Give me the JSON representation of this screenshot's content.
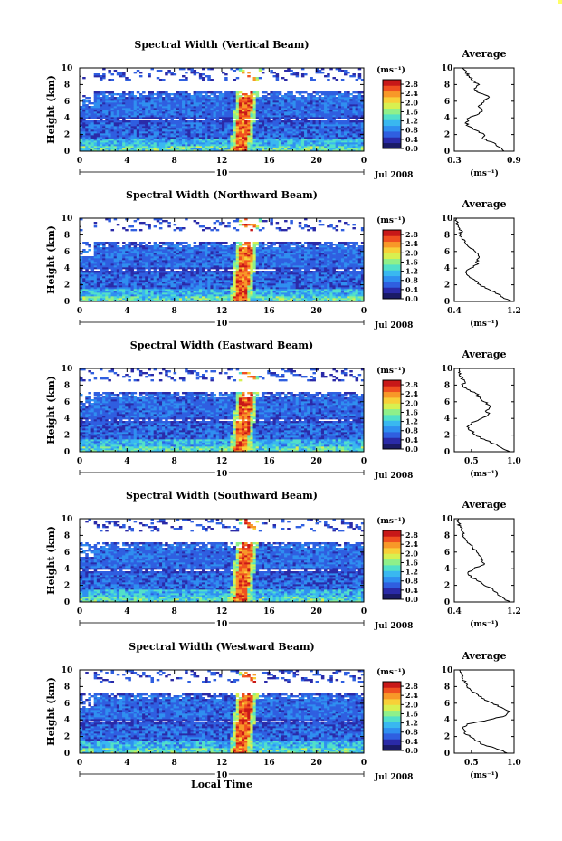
{
  "colors": {
    "colormap": [
      "#1a1a66",
      "#2a2aa8",
      "#2f5fe0",
      "#2f8ff0",
      "#39b8f0",
      "#52e0c8",
      "#8ff08a",
      "#d8f050",
      "#f8d038",
      "#f89828",
      "#f05020",
      "#c81818"
    ],
    "background": "#ffffff",
    "corner_marker": "#ffff66"
  },
  "chart_data": [
    {
      "type": "heatmap",
      "title": "Spectral Width (Vertical Beam)",
      "ylabel": "Height (km)",
      "ylim": [
        0,
        10
      ],
      "yticks": [
        "0",
        "2",
        "4",
        "6",
        "8",
        "10"
      ],
      "xlim": [
        0,
        24
      ],
      "xticks": [
        "0",
        "4",
        "8",
        "12",
        "16",
        "20",
        "0"
      ],
      "date_marker": "10",
      "date_label": "Jul 2008",
      "colorbar": {
        "unit": "(ms⁻¹)",
        "ticks": [
          "0.0",
          "0.4",
          "0.8",
          "1.2",
          "1.6",
          "2.0",
          "2.4",
          "2.8"
        ],
        "range": [
          0,
          3.0
        ]
      },
      "profile": {
        "title": "Average",
        "xticks": [
          "0.3",
          "0.9"
        ],
        "xlim": [
          0.3,
          0.9
        ],
        "ylim": [
          0,
          10
        ],
        "yticks": [
          "0",
          "2",
          "4",
          "6",
          "8",
          "10"
        ],
        "xlabel": "(ms⁻¹)",
        "x": [
          0.8,
          0.75,
          0.7,
          0.58,
          0.6,
          0.52,
          0.44,
          0.42,
          0.45,
          0.55,
          0.58,
          0.55,
          0.6,
          0.65,
          0.55,
          0.5,
          0.55,
          0.48,
          0.45,
          0.42,
          0.38
        ],
        "y": [
          0,
          0.5,
          1,
          1.5,
          2,
          2.5,
          3,
          3.5,
          4,
          4.5,
          5,
          5.5,
          6,
          6.5,
          7,
          7.5,
          8,
          8.5,
          9,
          9.5,
          10
        ]
      }
    },
    {
      "type": "heatmap",
      "title": "Spectral Width (Northward Beam)",
      "ylabel": "Height (km)",
      "ylim": [
        0,
        10
      ],
      "yticks": [
        "0",
        "2",
        "4",
        "6",
        "8",
        "10"
      ],
      "xlim": [
        0,
        24
      ],
      "xticks": [
        "0",
        "4",
        "8",
        "12",
        "16",
        "20",
        "0"
      ],
      "date_marker": "10",
      "date_label": "Jul 2008",
      "colorbar": {
        "unit": "(ms⁻¹)",
        "ticks": [
          "0.0",
          "0.4",
          "0.8",
          "1.2",
          "1.6",
          "2.0",
          "2.4",
          "2.8"
        ],
        "range": [
          0,
          3.0
        ]
      },
      "profile": {
        "title": "Average",
        "xticks": [
          "0.4",
          "1.2"
        ],
        "xlim": [
          0.4,
          1.2
        ],
        "ylim": [
          0,
          10
        ],
        "yticks": [
          "0",
          "2",
          "4",
          "6",
          "8",
          "10"
        ],
        "xlabel": "(ms⁻¹)",
        "x": [
          1.18,
          1.05,
          0.95,
          0.85,
          0.75,
          0.68,
          0.6,
          0.55,
          0.62,
          0.72,
          0.7,
          0.72,
          0.68,
          0.6,
          0.55,
          0.5,
          0.48,
          0.5,
          0.45,
          0.45,
          0.42
        ],
        "y": [
          0,
          0.5,
          1,
          1.5,
          2,
          2.5,
          3,
          3.5,
          4,
          4.5,
          5,
          5.5,
          6,
          6.5,
          7,
          7.5,
          8,
          8.5,
          9,
          9.5,
          10
        ]
      }
    },
    {
      "type": "heatmap",
      "title": "Spectral Width (Eastward Beam)",
      "ylabel": "Height (km)",
      "ylim": [
        0,
        10
      ],
      "yticks": [
        "0",
        "2",
        "4",
        "6",
        "8",
        "10"
      ],
      "xlim": [
        0,
        24
      ],
      "xticks": [
        "0",
        "4",
        "8",
        "12",
        "16",
        "20",
        "0"
      ],
      "date_marker": "10",
      "date_label": "Jul 2008",
      "colorbar": {
        "unit": "(ms⁻¹)",
        "ticks": [
          "0.0",
          "0.4",
          "0.8",
          "1.2",
          "1.6",
          "2.0",
          "2.4",
          "2.8"
        ],
        "range": [
          0,
          3.0
        ]
      },
      "profile": {
        "title": "Average",
        "xticks": [
          "0.5",
          "1.0"
        ],
        "xlim": [
          0.3,
          1.0
        ],
        "ylim": [
          0,
          10
        ],
        "yticks": [
          "0",
          "2",
          "4",
          "6",
          "8",
          "10"
        ],
        "xlabel": "(ms⁻¹)",
        "x": [
          0.95,
          0.85,
          0.75,
          0.65,
          0.55,
          0.5,
          0.45,
          0.5,
          0.62,
          0.7,
          0.68,
          0.72,
          0.65,
          0.6,
          0.55,
          0.45,
          0.4,
          0.42,
          0.38,
          0.35,
          0.36
        ],
        "y": [
          0,
          0.5,
          1,
          1.5,
          2,
          2.5,
          3,
          3.5,
          4,
          4.5,
          5,
          5.5,
          6,
          6.5,
          7,
          7.5,
          8,
          8.5,
          9,
          9.5,
          10
        ]
      }
    },
    {
      "type": "heatmap",
      "title": "Spectral Width (Southward Beam)",
      "ylabel": "Height (km)",
      "ylim": [
        0,
        10
      ],
      "yticks": [
        "0",
        "2",
        "4",
        "6",
        "8",
        "10"
      ],
      "xlim": [
        0,
        24
      ],
      "xticks": [
        "0",
        "4",
        "8",
        "12",
        "16",
        "20",
        "0"
      ],
      "date_marker": "10",
      "date_label": "Jul 2008",
      "colorbar": {
        "unit": "(ms⁻¹)",
        "ticks": [
          "0.0",
          "0.4",
          "0.8",
          "1.2",
          "1.6",
          "2.0",
          "2.4",
          "2.8"
        ],
        "range": [
          0,
          3.0
        ]
      },
      "profile": {
        "title": "Average",
        "xticks": [
          "0.4",
          "1.2"
        ],
        "xlim": [
          0.4,
          1.2
        ],
        "ylim": [
          0,
          10
        ],
        "yticks": [
          "0",
          "2",
          "4",
          "6",
          "8",
          "10"
        ],
        "xlabel": "(ms⁻¹)",
        "x": [
          1.15,
          1.05,
          0.98,
          0.92,
          0.8,
          0.72,
          0.62,
          0.58,
          0.66,
          0.8,
          0.78,
          0.75,
          0.7,
          0.65,
          0.6,
          0.55,
          0.52,
          0.5,
          0.48,
          0.46,
          0.45
        ],
        "y": [
          0,
          0.5,
          1,
          1.5,
          2,
          2.5,
          3,
          3.5,
          4,
          4.5,
          5,
          5.5,
          6,
          6.5,
          7,
          7.5,
          8,
          8.5,
          9,
          9.5,
          10
        ]
      }
    },
    {
      "type": "heatmap",
      "title": "Spectral Width (Westward Beam)",
      "ylabel": "Height (km)",
      "ylim": [
        0,
        10
      ],
      "yticks": [
        "0",
        "2",
        "4",
        "6",
        "8",
        "10"
      ],
      "xlim": [
        0,
        24
      ],
      "xticks": [
        "0",
        "4",
        "8",
        "12",
        "16",
        "20",
        "0"
      ],
      "date_marker": "10",
      "date_label": "Jul 2008",
      "xlabel": "Local Time",
      "colorbar": {
        "unit": "(ms⁻¹)",
        "ticks": [
          "0.0",
          "0.4",
          "0.8",
          "1.2",
          "1.6",
          "2.0",
          "2.4",
          "2.8"
        ],
        "range": [
          0,
          3.0
        ]
      },
      "profile": {
        "title": "Average",
        "xticks": [
          "0.5",
          "1.0"
        ],
        "xlim": [
          0.3,
          1.0
        ],
        "ylim": [
          0,
          10
        ],
        "yticks": [
          "0",
          "2",
          "4",
          "6",
          "8",
          "10"
        ],
        "xlabel": "(ms⁻¹)",
        "x": [
          0.92,
          0.8,
          0.65,
          0.55,
          0.48,
          0.42,
          0.4,
          0.45,
          0.7,
          0.9,
          0.95,
          0.85,
          0.75,
          0.65,
          0.58,
          0.5,
          0.45,
          0.42,
          0.4,
          0.38,
          0.36
        ],
        "y": [
          0,
          0.5,
          1,
          1.5,
          2,
          2.5,
          3,
          3.5,
          4,
          4.5,
          5,
          5.5,
          6,
          6.5,
          7,
          7.5,
          8,
          8.5,
          9,
          9.5,
          10
        ]
      }
    }
  ]
}
